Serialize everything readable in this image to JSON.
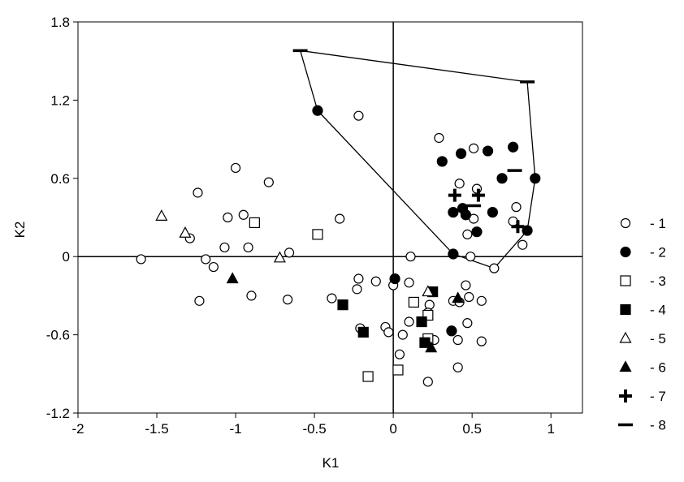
{
  "chart_data": {
    "type": "scatter",
    "x_label": "K1",
    "y_label": "K2",
    "xlim": [
      -2,
      1.2
    ],
    "ylim": [
      -1.2,
      1.8
    ],
    "xticks": [
      -2,
      -1.5,
      -1,
      -0.5,
      0,
      0.5,
      1
    ],
    "yticks": [
      -1.2,
      -0.6,
      0,
      0.6,
      1.2,
      1.8
    ],
    "zero_lines": true,
    "outline": {
      "x": [
        -0.59,
        0.85,
        0.9,
        0.85,
        0.64,
        0.38,
        -0.48,
        -0.59
      ],
      "y": [
        1.58,
        1.34,
        0.6,
        0.2,
        -0.09,
        0.02,
        1.12,
        1.58
      ]
    },
    "series": [
      {
        "name": "- 1",
        "marker": "circle",
        "filled": false,
        "color": "#000000",
        "x": [
          -1.6,
          -1.24,
          -1.29,
          -1.19,
          -1.14,
          -1.23,
          -1.0,
          -1.05,
          -0.95,
          -1.07,
          -0.92,
          -0.9,
          -0.79,
          -0.66,
          -0.67,
          -0.34,
          -0.22,
          -0.39,
          -0.22,
          -0.23,
          -0.21,
          -0.11,
          -0.05,
          -0.03,
          0,
          0.1,
          0.11,
          0.06,
          0.04,
          0.1,
          0.22,
          0.23,
          0.22,
          0.26,
          0.38,
          0.42,
          0.46,
          0.48,
          0.47,
          0.41,
          0.41,
          0.56,
          0.56,
          0.29,
          0.51,
          0.42,
          0.53,
          0.51,
          0.47,
          0.49,
          0.64,
          0.78,
          0.76,
          0.82
        ],
        "y": [
          -0.02,
          0.49,
          0.14,
          -0.02,
          -0.08,
          -0.34,
          0.68,
          0.3,
          0.32,
          0.07,
          0.07,
          -0.3,
          0.57,
          0.03,
          -0.33,
          0.29,
          1.08,
          -0.32,
          -0.17,
          -0.25,
          -0.55,
          -0.19,
          -0.54,
          -0.58,
          -0.22,
          -0.2,
          0,
          -0.6,
          -0.75,
          -0.5,
          -0.96,
          -0.37,
          -0.43,
          -0.64,
          -0.34,
          -0.35,
          -0.22,
          -0.31,
          -0.51,
          -0.64,
          -0.85,
          -0.34,
          -0.65,
          0.91,
          0.83,
          0.56,
          0.52,
          0.29,
          0.17,
          0,
          -0.09,
          0.38,
          0.27,
          0.09
        ]
      },
      {
        "name": "- 2",
        "marker": "circle",
        "filled": true,
        "color": "#000000",
        "x": [
          -0.48,
          0.31,
          0.43,
          0.6,
          0.76,
          0.9,
          0.69,
          0.38,
          0.44,
          0.46,
          0.63,
          0.53,
          0.85,
          0.38,
          0.01,
          0.37
        ],
        "y": [
          1.12,
          0.73,
          0.79,
          0.81,
          0.84,
          0.6,
          0.6,
          0.34,
          0.37,
          0.32,
          0.34,
          0.19,
          0.2,
          0.02,
          -0.17,
          -0.57
        ]
      },
      {
        "name": "- 3",
        "marker": "square",
        "filled": false,
        "color": "#000000",
        "x": [
          -0.88,
          -0.48,
          0.13,
          0.22,
          0.22,
          -0.16,
          0.03
        ],
        "y": [
          0.26,
          0.17,
          -0.35,
          -0.45,
          -0.63,
          -0.92,
          -0.87
        ]
      },
      {
        "name": "- 4",
        "marker": "square",
        "filled": true,
        "color": "#000000",
        "x": [
          -0.32,
          -0.19,
          0.25,
          0.18,
          0.2
        ],
        "y": [
          -0.37,
          -0.58,
          -0.27,
          -0.5,
          -0.66
        ]
      },
      {
        "name": "- 5",
        "marker": "triangle",
        "filled": false,
        "color": "#000000",
        "x": [
          -1.47,
          -1.32,
          -0.72,
          0.22
        ],
        "y": [
          0.31,
          0.18,
          -0.01,
          -0.27
        ]
      },
      {
        "name": "- 6",
        "marker": "triangle",
        "filled": true,
        "color": "#000000",
        "x": [
          -1.02,
          0.41,
          0.24
        ],
        "y": [
          -0.17,
          -0.32,
          -0.7
        ]
      },
      {
        "name": "- 7",
        "marker": "plus",
        "filled": true,
        "color": "#000000",
        "x": [
          0.39,
          0.54,
          0.79
        ],
        "y": [
          0.47,
          0.47,
          0.23
        ]
      },
      {
        "name": "- 8",
        "marker": "dash",
        "filled": true,
        "color": "#000000",
        "x": [
          -0.59,
          0.85,
          0.77,
          0.51
        ],
        "y": [
          1.58,
          1.34,
          0.66,
          0.39
        ]
      }
    ]
  }
}
